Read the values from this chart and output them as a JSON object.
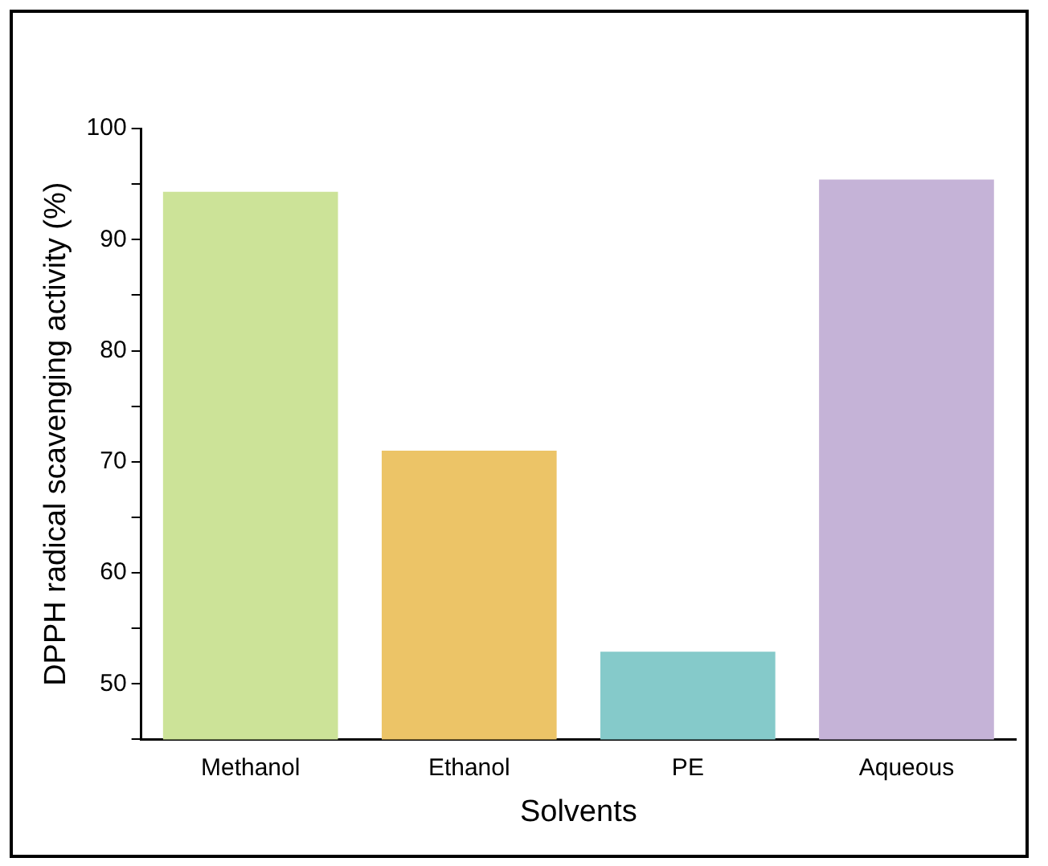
{
  "chart_data": {
    "type": "bar",
    "xlabel": "Solvents",
    "ylabel": "DPPH radical scavenging activity (%)",
    "categories": [
      "Methanol",
      "Ethanol",
      "PE",
      "Aqueous"
    ],
    "values": [
      94.3,
      71.0,
      52.9,
      95.4
    ],
    "colors": [
      "#cce398",
      "#ecc467",
      "#85caca",
      "#c5b3d7"
    ],
    "ylim": [
      45,
      100
    ],
    "yticks": [
      {
        "value": 45,
        "label": null
      },
      50,
      {
        "value": 55,
        "label": null
      },
      60,
      {
        "value": 65,
        "label": null
      },
      70,
      {
        "value": 75,
        "label": null
      },
      80,
      {
        "value": 85,
        "label": null
      },
      90,
      {
        "value": 95,
        "label": null
      },
      100
    ],
    "grid": false
  }
}
